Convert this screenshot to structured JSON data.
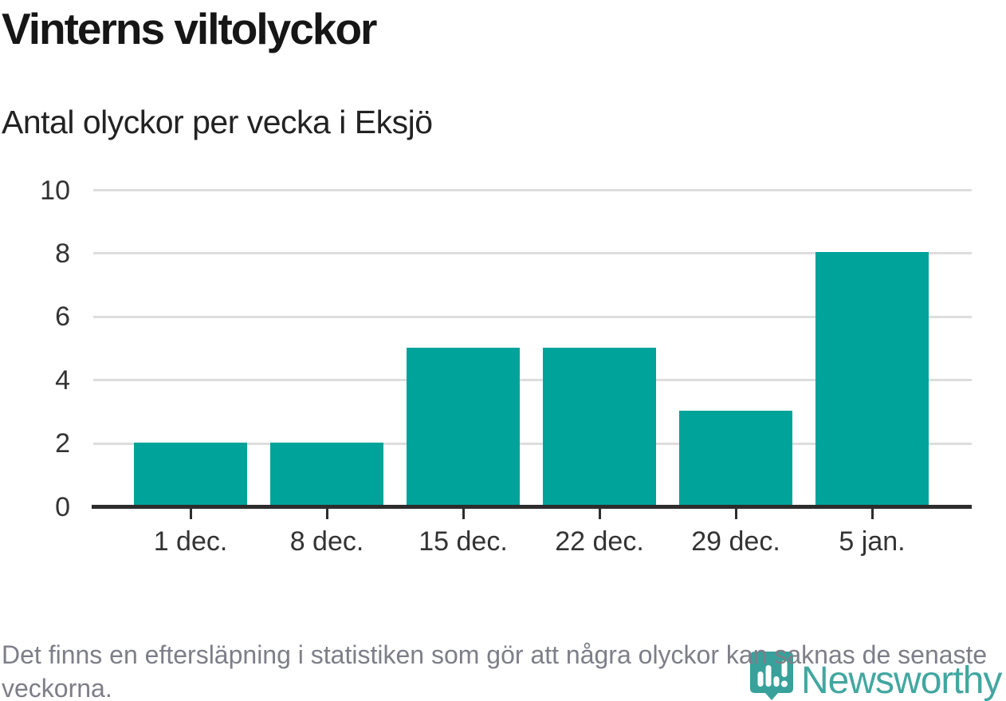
{
  "header": {
    "title": "Vinterns viltolyckor",
    "subtitle": "Antal olyckor per vecka i Eksjö"
  },
  "chart_data": {
    "type": "bar",
    "categories": [
      "1 dec.",
      "8 dec.",
      "15 dec.",
      "22 dec.",
      "29 dec.",
      "5 jan."
    ],
    "values": [
      2,
      2,
      5,
      5,
      3,
      8
    ],
    "title": "Vinterns viltolyckor",
    "subtitle": "Antal olyckor per vecka i Eksjö",
    "xlabel": "",
    "ylabel": "",
    "ylim": [
      0,
      10
    ],
    "yticks": [
      0,
      2,
      4,
      6,
      8,
      10
    ],
    "grid": "horizontal-only",
    "legend": "none",
    "bar_color": "#00a39a"
  },
  "footer": {
    "note": "Det finns en eftersläpning i statistiken som gör att några olyckor kan saknas de senaste veckorna."
  },
  "logo": {
    "text": "Newsworthy",
    "color": "#38a39b",
    "pin_color": "#2f9d96"
  },
  "colors": {
    "bar": "#00a39a",
    "grid": "#dddddd",
    "axis": "#2d2d2d",
    "title_text": "#161616",
    "axis_text": "#333333",
    "footer_text": "#7d7e88"
  }
}
